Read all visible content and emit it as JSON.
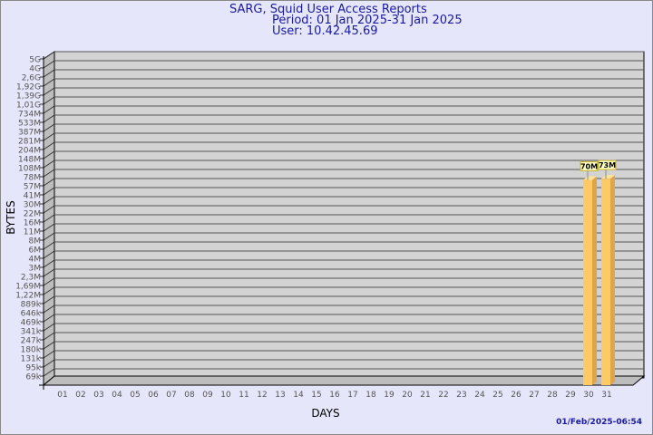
{
  "chart_data": {
    "type": "bar",
    "title": "SARG, Squid User Access Reports",
    "subtitle_period": "Period: 01 Jan 2025-31 Jan 2025",
    "subtitle_user": "User: 10.42.45.69",
    "xlabel": "DAYS",
    "ylabel": "BYTES",
    "y_scale": "log",
    "y_tick_labels": [
      "5G",
      "4G",
      "2,6G",
      "1,92G",
      "1,39G",
      "1,01G",
      "734M",
      "533M",
      "387M",
      "281M",
      "204M",
      "148M",
      "108M",
      "78M",
      "57M",
      "41M",
      "30M",
      "22M",
      "16M",
      "11M",
      "8M",
      "6M",
      "4M",
      "3M",
      "2,3M",
      "1,69M",
      "1,22M",
      "889k",
      "646k",
      "469k",
      "341k",
      "247k",
      "180k",
      "131k",
      "95k",
      "69k"
    ],
    "categories": [
      "01",
      "02",
      "03",
      "04",
      "05",
      "06",
      "07",
      "08",
      "09",
      "10",
      "11",
      "12",
      "13",
      "14",
      "15",
      "16",
      "17",
      "18",
      "19",
      "20",
      "21",
      "22",
      "23",
      "24",
      "25",
      "26",
      "27",
      "28",
      "29",
      "30",
      "31"
    ],
    "bars": [
      {
        "day": "30",
        "value_label": "70M",
        "value": 70000000
      },
      {
        "day": "31",
        "value_label": "73M",
        "value": 73000000
      }
    ],
    "grid": true,
    "colors": {
      "bar": "#ffc966",
      "bar_side": "#e0a54a",
      "bar_top": "#ffe39a",
      "label_bg": "#ffffc0",
      "label_border": "#c8b030",
      "wall": "#d3d3d3",
      "side_wall": "#bdbdbd",
      "title": "#1a1a9c"
    }
  },
  "footer": {
    "timestamp": "01/Feb/2025-06:54"
  }
}
